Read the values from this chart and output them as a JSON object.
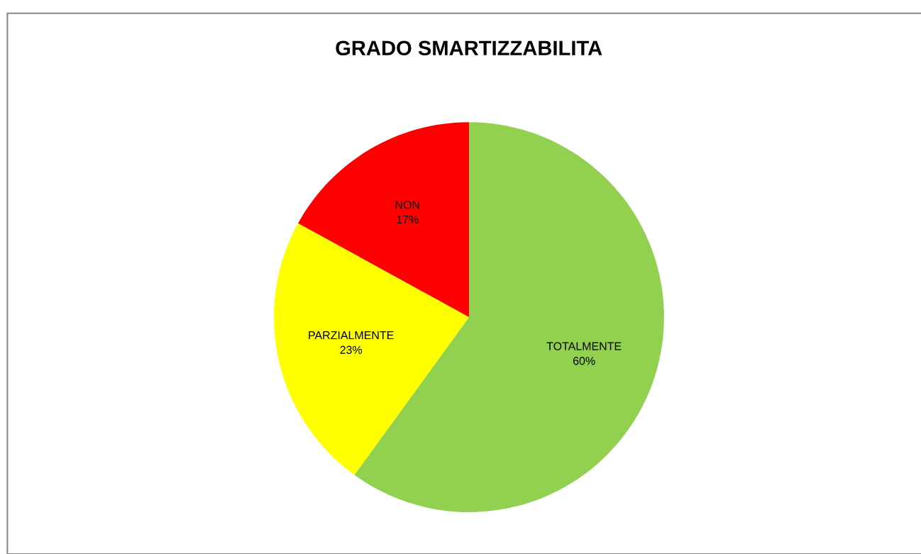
{
  "chart_data": {
    "type": "pie",
    "title": "GRADO SMARTIZZABILITA",
    "categories": [
      "TOTALMENTE",
      "PARZIALMENTE",
      "NON"
    ],
    "values": [
      60,
      23,
      17
    ],
    "colors": [
      "#92d050",
      "#ffff00",
      "#ff0000"
    ],
    "value_labels": [
      "60%",
      "23%",
      "17%"
    ],
    "legend": false
  }
}
